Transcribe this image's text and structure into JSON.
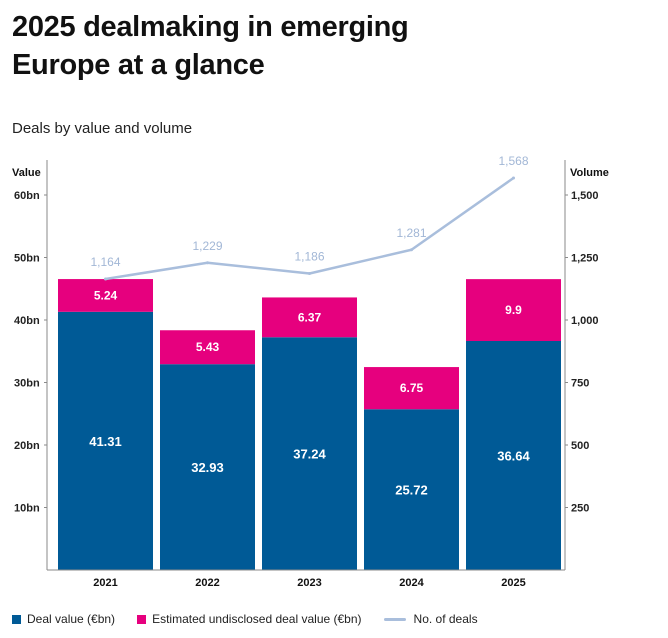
{
  "title_line1": "2025 dealmaking in emerging",
  "title_line2": "Europe at a glance",
  "subtitle": "Deals by value and volume",
  "chart_data": {
    "type": "bar",
    "stacked": true,
    "title": "2025 dealmaking in emerging Europe at a glance",
    "subtitle": "Deals by value and volume",
    "categories": [
      "2021",
      "2022",
      "2023",
      "2024",
      "2025"
    ],
    "series": [
      {
        "name": "Deal value (€bn)",
        "values": [
          41.31,
          32.93,
          37.24,
          25.72,
          36.64
        ],
        "color": "#005a96",
        "axis": "left"
      },
      {
        "name": "Estimated undisclosed deal value (€bn)",
        "values": [
          5.24,
          5.43,
          6.37,
          6.75,
          9.9
        ],
        "color": "#e6007e",
        "axis": "left"
      },
      {
        "name": "No. of deals",
        "type": "line",
        "values": [
          1164,
          1229,
          1186,
          1281,
          1568
        ],
        "labels": [
          "1,164",
          "1,229",
          "1,186",
          "1,281",
          "1,568"
        ],
        "color": "#a9bedc",
        "axis": "right"
      }
    ],
    "ylabel": "Value",
    "y2label": "Volume",
    "ylim": [
      0,
      65
    ],
    "yticks": [
      10,
      20,
      30,
      40,
      50,
      60
    ],
    "ytick_labels": [
      "10bn",
      "20bn",
      "30bn",
      "40bn",
      "50bn",
      "60bn"
    ],
    "y2lim": [
      0,
      1625
    ],
    "y2ticks": [
      250,
      500,
      750,
      1000,
      1250,
      1500
    ],
    "y2tick_labels": [
      "250",
      "500",
      "750",
      "1,000",
      "1,250",
      "1,500"
    ],
    "grid": false,
    "legend": "bottom"
  },
  "legend": {
    "items": [
      "Deal value (€bn)",
      "Estimated undisclosed deal value (€bn)",
      "No. of deals"
    ]
  }
}
